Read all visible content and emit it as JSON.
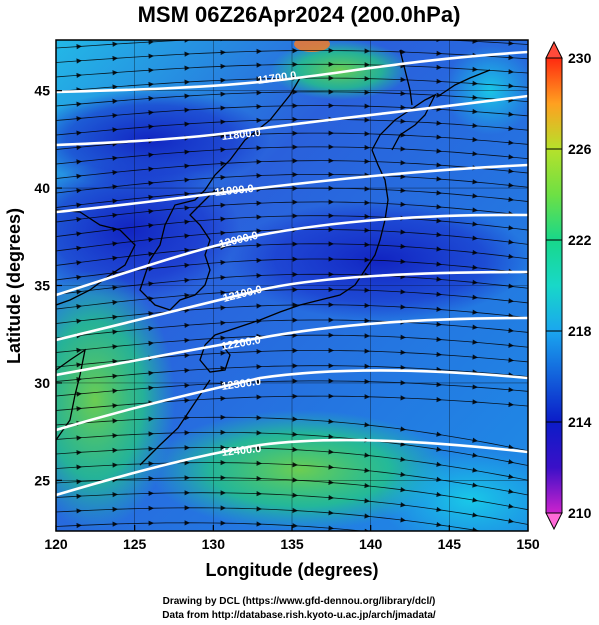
{
  "title": "MSM 06Z26Apr2024 (200.0hPa)",
  "credits": [
    "Drawing by DCL (https://www.gfd-dennou.org/library/dcl/)",
    "Data from http://database.rish.kyoto-u.ac.jp/arch/jmadata/"
  ],
  "map": {
    "xlabel": "Longitude (degrees)",
    "ylabel": "Latitude  (degrees)",
    "lon_range": [
      120,
      150
    ],
    "lat_range": [
      22.4,
      47.6
    ],
    "lon_ticks": [
      120,
      125,
      130,
      135,
      140,
      145,
      150
    ],
    "lat_ticks": [
      25,
      30,
      35,
      40,
      45
    ],
    "grid": true,
    "colorbar": {
      "min": 210,
      "max": 230,
      "tick_labels": [
        210,
        214,
        218,
        222,
        226,
        230
      ],
      "colors": [
        "#cc22cc",
        "#0b1cc8",
        "#1aa6ef",
        "#18d88a",
        "#b6e12b",
        "#ffa020",
        "#ff2a10"
      ]
    },
    "height_contours": [
      {
        "value": 11700,
        "label": "11700.0"
      },
      {
        "value": 11800,
        "label": "11800.0"
      },
      {
        "value": 11900,
        "label": "11900.0"
      },
      {
        "value": 12000,
        "label": "12000.0"
      },
      {
        "value": 12100,
        "label": "12100.0"
      },
      {
        "value": 12200,
        "label": "12200.0"
      },
      {
        "value": 12300,
        "label": "12300.0"
      },
      {
        "value": 12400,
        "label": "12400.0"
      }
    ],
    "colors": {
      "contour": "#ffffff",
      "coastline": "#000000",
      "streamline": "#000000",
      "grid": "#000000"
    }
  }
}
